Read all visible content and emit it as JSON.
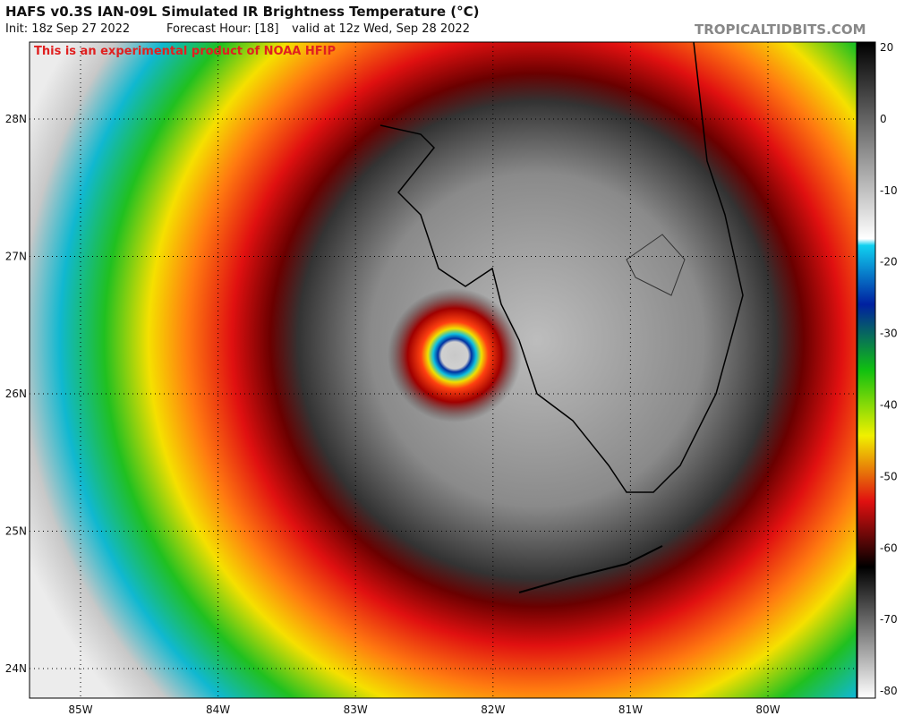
{
  "header": {
    "title": "HAFS v0.3S IAN-09L Simulated IR Brightness Temperature (°C)",
    "init": "Init: 18z Sep 27 2022",
    "forecast_hour": "Forecast Hour: [18]",
    "valid": "valid at 12z Wed, Sep 28 2022",
    "source": "TROPICALTIDBITS.COM"
  },
  "notice": "This is an experimental product of NOAA HFIP",
  "map": {
    "latitudes": [
      "28N",
      "27N",
      "26N",
      "25N",
      "24N"
    ],
    "longitudes": [
      "85W",
      "84W",
      "83W",
      "82W",
      "81W",
      "80W"
    ]
  },
  "colorbar": {
    "ticks": [
      20,
      0,
      -10,
      -20,
      -30,
      -40,
      -50,
      -60,
      -70,
      -80
    ]
  }
}
